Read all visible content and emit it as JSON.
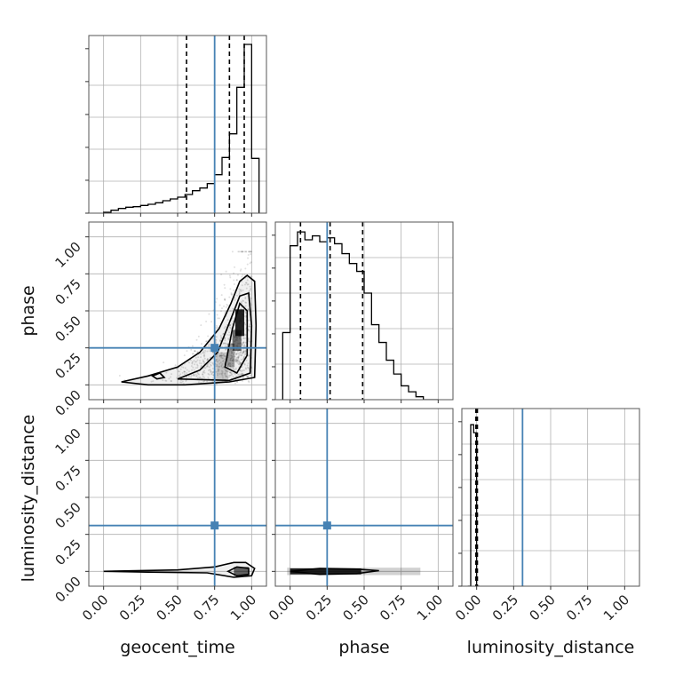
{
  "chart_data": {
    "type": "corner",
    "parameters": [
      "geocent_time",
      "phase",
      "luminosity_distance"
    ],
    "truths": {
      "geocent_time": 0.75,
      "phase": 0.25,
      "luminosity_distance": 0.31
    },
    "grid": true,
    "colors": {
      "truth": "#4682b4",
      "hist": "#000000",
      "grid": "#b0b0b0",
      "quantile": "#000000"
    },
    "axis_range": [
      -0.1,
      1.1
    ],
    "tick_labels": [
      "0.00",
      "0.25",
      "0.50",
      "0.75",
      "1.00"
    ],
    "tick_values": [
      0,
      0.25,
      0.5,
      0.75,
      1.0
    ],
    "histograms": {
      "geocent_time": {
        "bin_edges": [
          0.0,
          0.05,
          0.1,
          0.15,
          0.2,
          0.25,
          0.3,
          0.35,
          0.4,
          0.45,
          0.5,
          0.55,
          0.6,
          0.65,
          0.7,
          0.75,
          0.8,
          0.85,
          0.9,
          0.95,
          1.0,
          1.05
        ],
        "counts": [
          0.3,
          1.0,
          1.6,
          2.0,
          2.2,
          2.6,
          3.0,
          3.5,
          4.2,
          4.8,
          5.4,
          6.3,
          7.6,
          8.5,
          10.0,
          13.0,
          18.8,
          26.8,
          42.5,
          57.0,
          18.5
        ],
        "quantiles": [
          0.56,
          0.85,
          0.95
        ],
        "ymax": 60
      },
      "phase": {
        "bin_edges": [
          -0.05,
          0.0,
          0.05,
          0.1,
          0.15,
          0.2,
          0.25,
          0.3,
          0.35,
          0.4,
          0.45,
          0.5,
          0.55,
          0.6,
          0.65,
          0.7,
          0.75,
          0.8,
          0.85,
          0.9,
          0.95,
          1.0
        ],
        "counts": [
          3.4,
          7.8,
          8.5,
          8.1,
          8.3,
          8.0,
          8.2,
          7.9,
          7.4,
          6.9,
          6.5,
          5.4,
          3.8,
          2.9,
          2.0,
          1.3,
          0.7,
          0.4,
          0.15,
          0.0,
          0.0
        ],
        "quantiles": [
          0.07,
          0.27,
          0.49
        ],
        "ymax": 9.0
      },
      "luminosity_distance": {
        "bin_edges": [
          -0.06,
          -0.04,
          -0.02,
          0.0,
          0.02
        ],
        "counts": [
          0.0,
          1.0,
          0.95,
          0.0
        ],
        "quantiles": [
          -0.005,
          0.0,
          0.005
        ],
        "ymax": 1.1
      }
    },
    "scatter_2d": {
      "geocent_time_vs_phase": {
        "samples_description_none": "",
        "contours": [
          [
            [
              0.12,
              0.02
            ],
            [
              0.3,
              0.06
            ],
            [
              0.5,
              0.12
            ],
            [
              0.65,
              0.22
            ],
            [
              0.78,
              0.38
            ],
            [
              0.86,
              0.55
            ],
            [
              0.92,
              0.7
            ],
            [
              0.97,
              0.74
            ],
            [
              1.02,
              0.7
            ],
            [
              1.03,
              0.4
            ],
            [
              1.02,
              0.05
            ],
            [
              0.85,
              0.02
            ],
            [
              0.55,
              0.0
            ],
            [
              0.3,
              0.0
            ],
            [
              0.12,
              0.02
            ]
          ],
          [
            [
              0.5,
              0.04
            ],
            [
              0.65,
              0.1
            ],
            [
              0.77,
              0.22
            ],
            [
              0.85,
              0.42
            ],
            [
              0.92,
              0.6
            ],
            [
              0.98,
              0.62
            ],
            [
              1.0,
              0.4
            ],
            [
              0.99,
              0.08
            ],
            [
              0.85,
              0.03
            ],
            [
              0.5,
              0.04
            ]
          ],
          [
            [
              0.82,
              0.12
            ],
            [
              0.87,
              0.38
            ],
            [
              0.92,
              0.55
            ],
            [
              0.97,
              0.5
            ],
            [
              0.97,
              0.2
            ],
            [
              0.9,
              0.08
            ],
            [
              0.82,
              0.12
            ]
          ],
          [
            [
              0.33,
              0.06
            ],
            [
              0.38,
              0.08
            ],
            [
              0.41,
              0.05
            ],
            [
              0.36,
              0.04
            ],
            [
              0.33,
              0.06
            ]
          ]
        ]
      },
      "geocent_time_vs_luminosity_distance": {
        "contours": [
          [
            [
              0.0,
              0.0
            ],
            [
              0.5,
              0.01
            ],
            [
              0.75,
              0.03
            ],
            [
              0.88,
              0.06
            ],
            [
              0.96,
              0.06
            ],
            [
              1.02,
              0.02
            ],
            [
              1.0,
              -0.03
            ],
            [
              0.88,
              -0.04
            ],
            [
              0.7,
              -0.01
            ],
            [
              0.3,
              -0.005
            ],
            [
              0.0,
              0.0
            ]
          ],
          [
            [
              0.84,
              0.0
            ],
            [
              0.9,
              0.03
            ],
            [
              0.98,
              0.02
            ],
            [
              0.98,
              -0.02
            ],
            [
              0.9,
              -0.03
            ],
            [
              0.84,
              0.0
            ]
          ]
        ]
      },
      "phase_vs_luminosity_distance": {
        "contours": [
          [
            [
              0.0,
              0.0
            ],
            [
              0.2,
              0.02
            ],
            [
              0.45,
              0.015
            ],
            [
              0.6,
              0.005
            ],
            [
              0.45,
              -0.015
            ],
            [
              0.2,
              -0.02
            ],
            [
              0.0,
              0.0
            ]
          ]
        ]
      }
    }
  }
}
